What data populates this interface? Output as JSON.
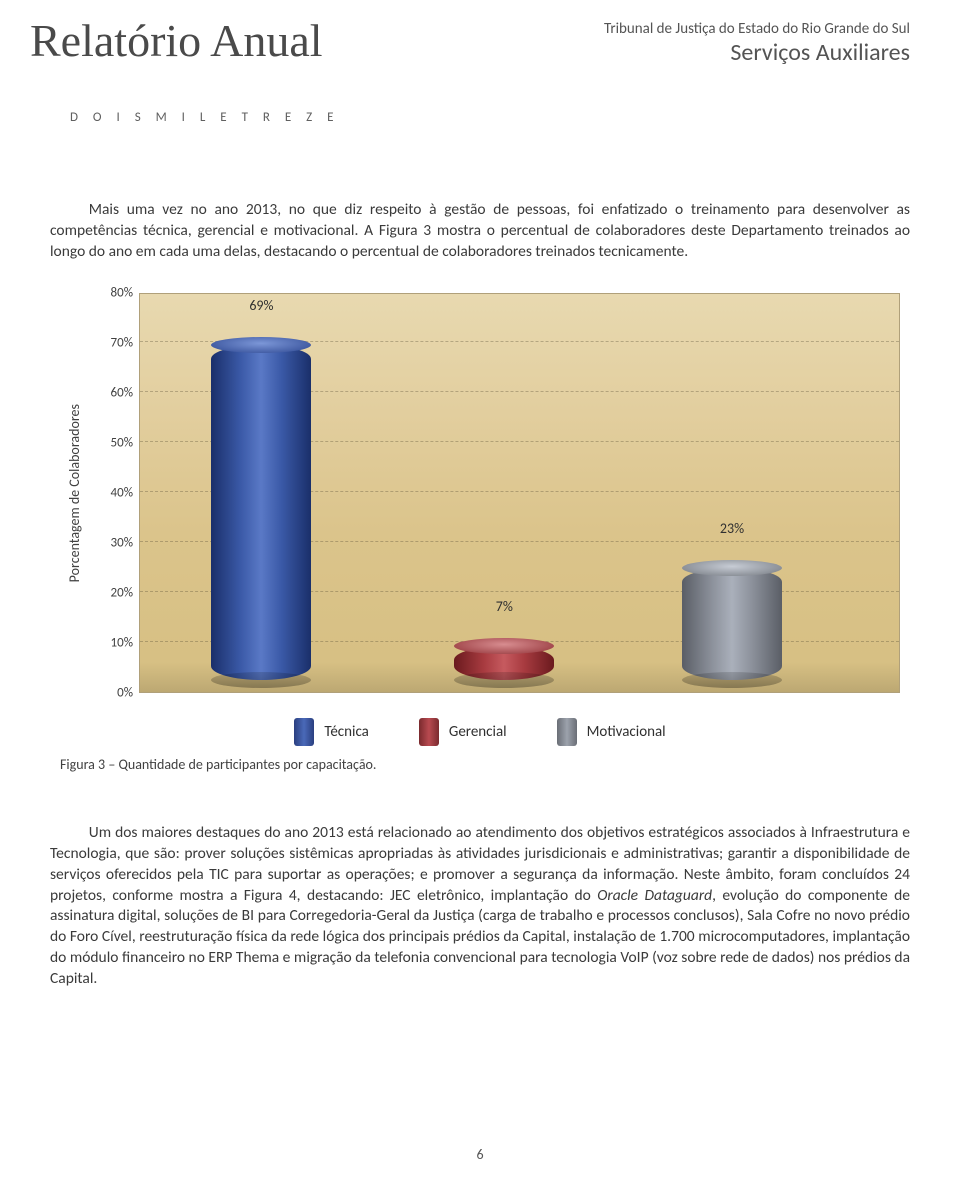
{
  "header": {
    "script_title": "Relatório Anual",
    "org": "Tribunal de Justiça do Estado do Rio Grande do Sul",
    "dept": "Serviços Auxiliares",
    "year_words": "D O I S   M I L   E   T R E Z E"
  },
  "intro_paragraph": "Mais uma vez no ano 2013, no que diz respeito à gestão de pessoas, foi enfatizado o treinamento para desenvolver as competências técnica, gerencial e motivacional. A Figura 3 mostra o percentual de colaboradores deste Departamento treinados ao longo do ano em cada uma delas, destacando o percentual de colaboradores treinados tecnicamente.",
  "chart": {
    "type": "bar",
    "ylabel": "Porcentagem de Colaboradores",
    "ylim": [
      0,
      80
    ],
    "ytick_step": 10,
    "yticks": [
      "0%",
      "10%",
      "20%",
      "30%",
      "40%",
      "50%",
      "60%",
      "70%",
      "80%"
    ],
    "background_gradient": [
      "#e8d9b0",
      "#d6bf82"
    ],
    "grid_color": "rgba(90,80,55,0.35)",
    "series": [
      {
        "label": "Técnica",
        "value": 69,
        "value_label": "69%",
        "color": "#3b5aa8",
        "swatch_class": "sw-blue",
        "cyl_class": "cyl-blue",
        "x_percent": 16
      },
      {
        "label": "Gerencial",
        "value": 7,
        "value_label": "7%",
        "color": "#a83b40",
        "swatch_class": "sw-red",
        "cyl_class": "cyl-red",
        "x_percent": 48
      },
      {
        "label": "Motivacional",
        "value": 23,
        "value_label": "23%",
        "color": "#8c919b",
        "swatch_class": "sw-grey",
        "cyl_class": "cyl-grey",
        "x_percent": 78
      }
    ]
  },
  "caption": "Figura 3 – Quantidade de participantes por capacitação.",
  "body_paragraph_html": "Um dos maiores destaques do ano 2013 está relacionado ao atendimento dos objetivos estratégicos associados à Infraestrutura e Tecnologia, que são: prover soluções sistêmicas apropriadas às atividades jurisdicionais e administrativas; garantir a disponibilidade de serviços oferecidos pela TIC para suportar as operações; e promover a segurança da informação. Neste âmbito, foram concluídos 24 projetos, conforme mostra a Figura 4, destacando: JEC eletrônico, implantação do <em>Oracle Dataguard</em>, evolução do componente de assinatura digital, soluções de BI para Corregedoria-Geral da Justiça (carga de trabalho e processos conclusos), Sala Cofre no novo prédio do Foro Cível, reestruturação física da rede lógica dos principais prédios da Capital, instalação de 1.700 microcomputadores, implantação do módulo financeiro no ERP Thema e migração da telefonia convencional para tecnologia VoIP (voz sobre rede de dados) nos prédios da Capital.",
  "page_number": "6"
}
